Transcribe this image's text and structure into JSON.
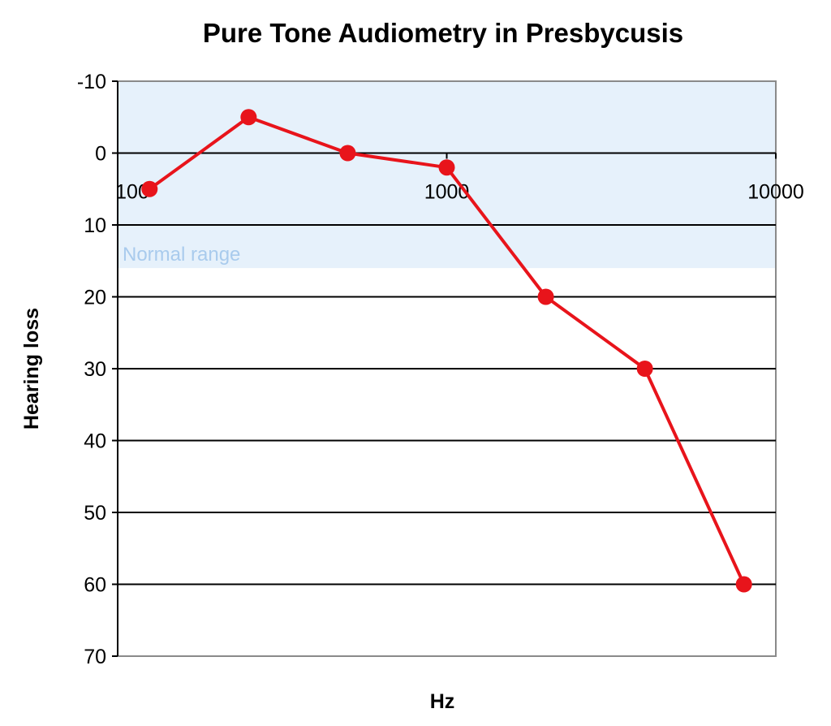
{
  "chart_data": {
    "type": "line",
    "title": "Pure Tone Audiometry in Presbycusis",
    "xlabel": "Hz",
    "ylabel": "Hearing loss",
    "x_scale": "log",
    "xlim": [
      100,
      10000
    ],
    "ylim": [
      -10,
      70
    ],
    "y_inverted": true,
    "x_ticks": [
      100,
      1000,
      10000
    ],
    "x_tick_labels": [
      "100",
      "1000",
      "10000"
    ],
    "y_ticks": [
      -10,
      0,
      10,
      20,
      30,
      40,
      50,
      60,
      70
    ],
    "y_tick_labels": [
      "-10",
      "0",
      "10",
      "20",
      "30",
      "40",
      "50",
      "60",
      "70"
    ],
    "grid": true,
    "normal_range": {
      "label": "Normal range",
      "from": -10,
      "to": 16,
      "color": "#e6f1fb",
      "label_color": "#a9cbed"
    },
    "series": [
      {
        "name": "Hearing loss",
        "color": "#e8141b",
        "points": [
          {
            "x": 125,
            "y": 5
          },
          {
            "x": 250,
            "y": -5
          },
          {
            "x": 500,
            "y": 0
          },
          {
            "x": 1000,
            "y": 2
          },
          {
            "x": 2000,
            "y": 20
          },
          {
            "x": 4000,
            "y": 30
          },
          {
            "x": 8000,
            "y": 60
          }
        ]
      }
    ]
  }
}
